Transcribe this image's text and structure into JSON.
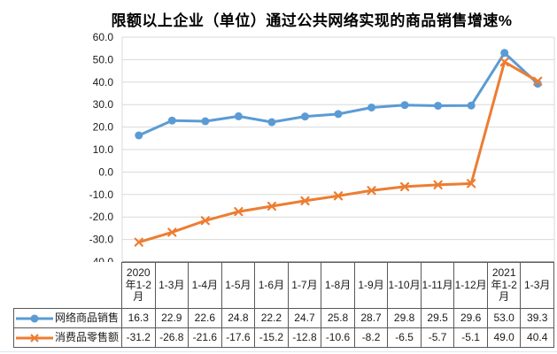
{
  "title": "限额以上企业（单位）通过公共网络实现的商品销售增速%",
  "chart_data": {
    "type": "line",
    "title": "限额以上企业（单位）通过公共网络实现的商品销售增速%",
    "categories": [
      "2020年1-2月",
      "1-3月",
      "1-4月",
      "1-5月",
      "1-6月",
      "1-7月",
      "1-8月",
      "1-9月",
      "1-10月",
      "1-11月",
      "1-12月",
      "2021年1-2月",
      "1-3月"
    ],
    "series": [
      {
        "name": "网络商品销售",
        "marker": "circle",
        "color": "#5B9BD5",
        "values": [
          16.3,
          22.9,
          22.6,
          24.8,
          22.2,
          24.7,
          25.8,
          28.7,
          29.8,
          29.5,
          29.6,
          53.0,
          39.3
        ]
      },
      {
        "name": "消费品零售额",
        "marker": "x",
        "color": "#ED7D31",
        "values": [
          -31.2,
          -26.8,
          -21.6,
          -17.6,
          -15.2,
          -12.8,
          -10.6,
          -8.2,
          -6.5,
          -5.7,
          -5.1,
          49.0,
          40.4
        ]
      }
    ],
    "ylim": [
      -40,
      60
    ],
    "ytick_step": 10,
    "ytick_labels": [
      "60.0",
      "50.0",
      "40.0",
      "30.0",
      "20.0",
      "10.0",
      "0.0",
      "-10.0",
      "-20.0",
      "-30.0",
      "-40.0"
    ],
    "grid": true,
    "legend_position": "data-table",
    "colors": {
      "gridline": "#D9D9D9",
      "axis_line": "#595959",
      "table_border": "#595959",
      "text": "#1a1a1a"
    }
  }
}
